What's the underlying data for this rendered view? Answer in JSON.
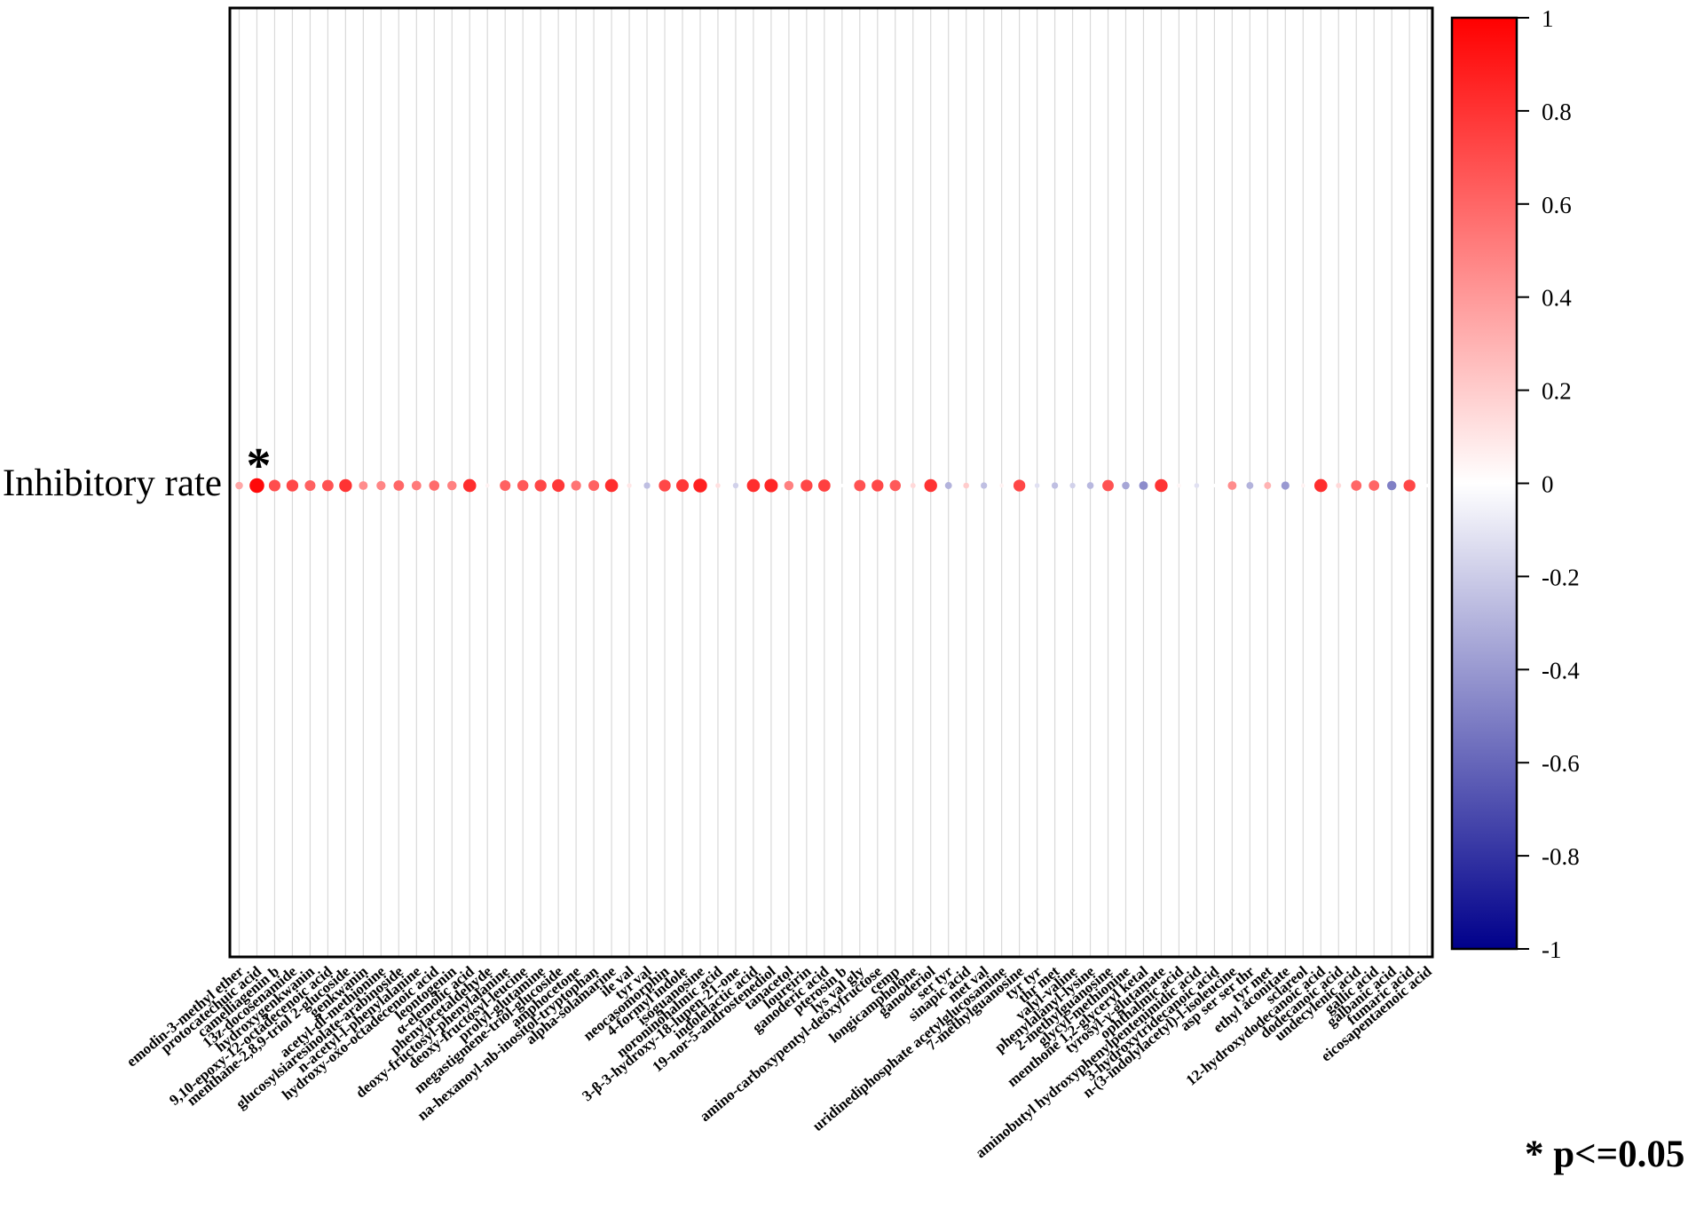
{
  "chart_data": {
    "type": "heatmap",
    "title": "",
    "rows": [
      "Inhibitory rate"
    ],
    "categories": [
      "emodin-3-methyl ether",
      "protocatechuic acid",
      "camelliagenin b",
      "13z-docosenamide",
      "hydroxygenkwanin",
      "9,10-epoxy-12-octadecenoic acid",
      "menthane-2,8,9-triol 2-glucoside",
      "genkwanin",
      "acetyl-dl-methionine",
      "glucosylsiaresinolate-arabinoside",
      "n-acetyl-l-phenylalanine",
      "hydroxy-oxo-octadecenoic acid",
      "leontogenin",
      "α-elemolic acid",
      "phenylacetaldehyde",
      "deoxy-fructosyl-phenylalanine",
      "deoxy-fructosyl-leucine",
      "prolyl-glutamine",
      "megastigmene-triol-glucoside",
      "amphocetone",
      "na-hexanoyl-nb-inositol-tryptophan",
      "alpha-solamarine",
      "ile val",
      "tyr val",
      "neocasomorphin",
      "4-formyl indole",
      "isoguanosine",
      "noroninohalmic acid",
      "3-β-3-hydroxy-18-lupen-21-one",
      "indolelactic acid",
      "19-nor-5-androstenediol",
      "tanacetol",
      "loureirin",
      "ganoderic acid",
      "pterosin b",
      "lys val gly",
      "amino-carboxypentyl-deoxyfructose",
      "cemp",
      "longicampholone",
      "ganoderiol",
      "ser tyr",
      "sinapic acid",
      "met val",
      "uridinediphosphate acetylglucosamine",
      "7-methylguanosine",
      "tyr tyr",
      "thr met",
      "valyl-valine",
      "phenylalanyl-lysine",
      "2-methylguanosine",
      "glycyl-methionine",
      "menthone 1,2-glyceryl ketal",
      "tyrosyl-γ-glutamate",
      "ophthalmic acid",
      "aminobutyl hydroxyphenylpentenimidic acid",
      "3-hydroxytridecanoic acid",
      "n-(3-indolylacetyl)-l-isoleucine",
      "asp ser ser thr",
      "tyr met",
      "ethyl aconitate",
      "sclareol",
      "12-hydroxydodecanoic acid",
      "dodecanoic acid",
      "undecylenic acid",
      "gallic acid",
      "galbanic acid",
      "fumaric acid",
      "eicosapentaenoic acid"
    ],
    "values": [
      0.35,
      0.97,
      0.7,
      0.72,
      0.62,
      0.68,
      0.8,
      0.45,
      0.48,
      0.6,
      0.52,
      0.58,
      0.5,
      0.82,
      0.05,
      0.62,
      0.65,
      0.72,
      0.78,
      0.55,
      0.62,
      0.82,
      0.1,
      -0.25,
      0.72,
      0.78,
      0.88,
      0.12,
      -0.18,
      0.82,
      0.85,
      0.5,
      0.72,
      0.75,
      0.0,
      0.68,
      0.72,
      0.65,
      0.15,
      0.8,
      -0.3,
      0.2,
      -0.25,
      0.05,
      0.72,
      -0.12,
      -0.25,
      -0.18,
      -0.28,
      0.68,
      -0.35,
      -0.45,
      0.8,
      0.04,
      -0.12,
      0.0,
      0.45,
      -0.3,
      0.3,
      -0.4,
      0.05,
      0.82,
      0.15,
      0.6,
      0.6,
      -0.5,
      0.72,
      0.0
    ],
    "significant": [
      "protocatechuic acid"
    ],
    "colorbar": {
      "min": -1,
      "max": 1,
      "ticks": [
        "1",
        "0.8",
        "0.6",
        "0.4",
        "0.2",
        "0",
        "-0.2",
        "-0.4",
        "-0.6",
        "-0.8",
        "-1"
      ],
      "colors": {
        "low": "#00008b",
        "mid": "#ffffff",
        "high": "#ff0000"
      }
    },
    "significance_marker": "*",
    "grid": true
  },
  "legend_note": "* p<=0.05"
}
